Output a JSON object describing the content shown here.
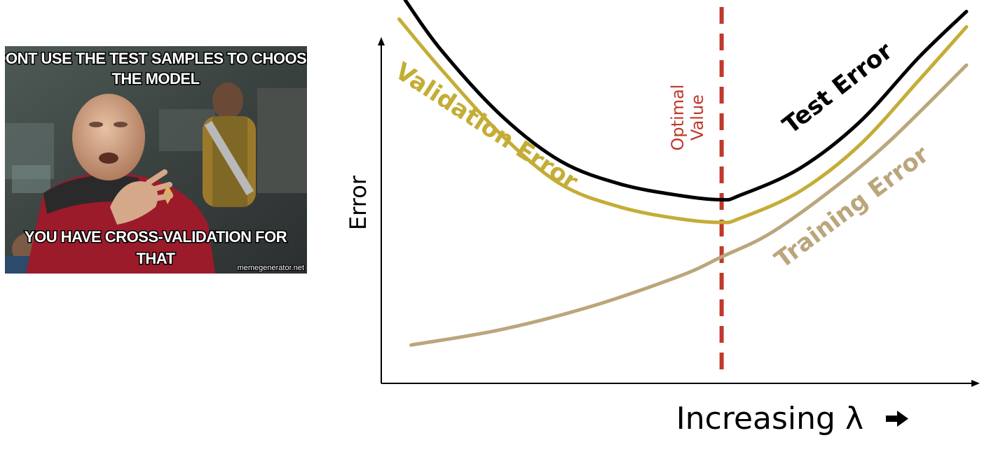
{
  "meme": {
    "top_text_line1": "DONT USE THE TEST SAMPLES TO CHOOSE",
    "top_text_line2": "THE MODEL",
    "bottom_text_line1": "YOU HAVE CROSS-VALIDATION FOR",
    "bottom_text_line2": "THAT",
    "credit": "memegenerator.net"
  },
  "chart_data": {
    "type": "line",
    "title": "",
    "xlabel": "Increasing λ",
    "ylabel": "Error",
    "xlim": [
      0,
      1
    ],
    "ylim": [
      0,
      1
    ],
    "grid": false,
    "legend": "none",
    "series": [
      {
        "name": "Test Error",
        "color": "#000000",
        "x": [
          0.04,
          0.1,
          0.2,
          0.3,
          0.4,
          0.5,
          0.57,
          0.6,
          0.7,
          0.8,
          0.9,
          0.98
        ],
        "y": [
          1.0,
          0.87,
          0.7,
          0.58,
          0.52,
          0.49,
          0.479,
          0.49,
          0.56,
          0.68,
          0.85,
          0.97
        ]
      },
      {
        "name": "Validation Error",
        "color": "#c4ad36",
        "x": [
          0.03,
          0.1,
          0.2,
          0.3,
          0.4,
          0.5,
          0.57,
          0.6,
          0.7,
          0.8,
          0.9,
          0.98
        ],
        "y": [
          0.95,
          0.82,
          0.65,
          0.52,
          0.46,
          0.429,
          0.42,
          0.43,
          0.5,
          0.62,
          0.79,
          0.93
        ]
      },
      {
        "name": "Training Error",
        "color": "#bba67c",
        "x": [
          0.05,
          0.2,
          0.35,
          0.5,
          0.57,
          0.65,
          0.75,
          0.85,
          0.98
        ],
        "y": [
          0.1,
          0.14,
          0.2,
          0.28,
          0.33,
          0.39,
          0.5,
          0.63,
          0.83
        ]
      }
    ],
    "annotations": [
      {
        "text_line1": "Optimal",
        "text_line2": "Value",
        "x": 0.57,
        "color": "#c0392b",
        "style": "dashed vertical line"
      }
    ]
  }
}
